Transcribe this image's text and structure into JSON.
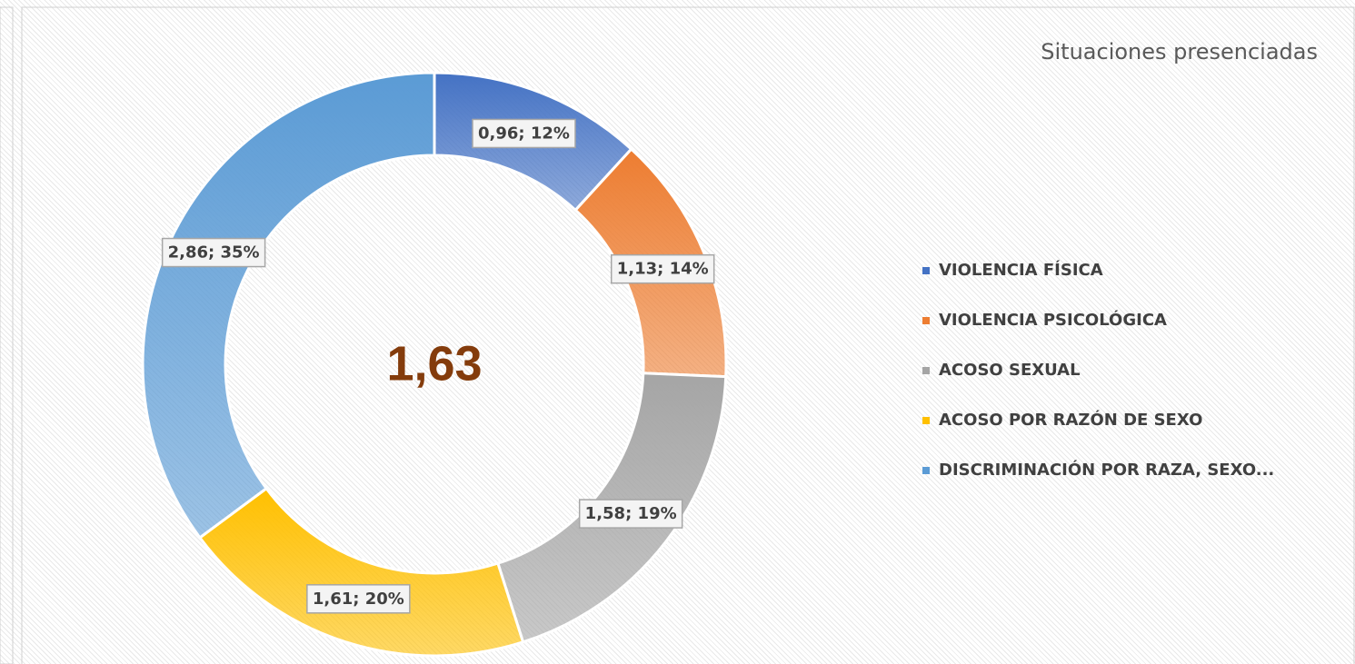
{
  "chart_data": {
    "type": "donut",
    "title": "Situaciones presenciadas",
    "center_label": "1,63",
    "categories": [
      "VIOLENCIA FÍSICA",
      "VIOLENCIA PSICOLÓGICA",
      "ACOSO SEXUAL",
      "ACOSO POR RAZÓN DE SEXO",
      "DISCRIMINACIÓN POR RAZA, SEXO..."
    ],
    "values": [
      0.96,
      1.13,
      1.58,
      1.61,
      2.86
    ],
    "value_labels": [
      "0,96; 12%",
      "1,13; 14%",
      "1,58; 19%",
      "1,61; 20%",
      "2,86; 35%"
    ],
    "colors": [
      "#4472c4",
      "#ed7d31",
      "#a5a5a5",
      "#ffc000",
      "#5b9bd5"
    ],
    "legend": "right"
  }
}
